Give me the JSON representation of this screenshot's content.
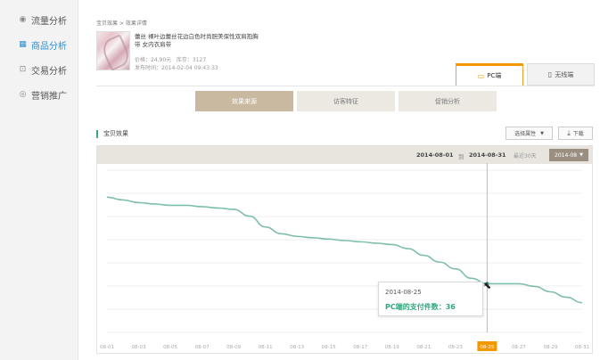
{
  "sidebar": {
    "items": [
      {
        "label": "流量分析",
        "icon": "eye-icon"
      },
      {
        "label": "商品分析",
        "icon": "product-icon",
        "active": true
      },
      {
        "label": "交易分析",
        "icon": "cart-icon"
      },
      {
        "label": "营销推广",
        "icon": "promotion-icon"
      }
    ]
  },
  "breadcrumb": "宝贝效果 > 效果详情",
  "product": {
    "title": "蕾丝 裸叶边蕾丝花边白色时尚胆美保性双肩抱胸带 女内衣肩带",
    "price_label": "价格：24.90元",
    "stock_label": "库存：3127",
    "published_label": "发布时间：2014-02-04 09:43:33"
  },
  "device_tabs": [
    {
      "label": "PC端",
      "active": true
    },
    {
      "label": "无线端",
      "active": false
    }
  ],
  "sub_tabs": [
    {
      "label": "效果来源",
      "active": true
    },
    {
      "label": "访客特征",
      "active": false
    },
    {
      "label": "促销分析",
      "active": false
    }
  ],
  "section_title": "宝贝效果",
  "select_attr_label": "选择属性",
  "download_label": "下载",
  "date_range": {
    "start": "2014-08-01",
    "to": "到",
    "end": "2014-08-31"
  },
  "recent_label": "最近30天",
  "month_label": "2014-08",
  "tooltip": {
    "date": "2014-08-25",
    "text": "PC端的支付件数：36"
  },
  "colors": {
    "accent": "#f39800",
    "line": "#7fbfa9",
    "highlight": "#2fa77a"
  },
  "chart_data": {
    "type": "line",
    "x": [
      "08-01",
      "08-02",
      "08-03",
      "08-04",
      "08-05",
      "08-06",
      "08-07",
      "08-08",
      "08-09",
      "08-10",
      "08-11",
      "08-12",
      "08-13",
      "08-14",
      "08-15",
      "08-16",
      "08-17",
      "08-18",
      "08-19",
      "08-20",
      "08-21",
      "08-22",
      "08-23",
      "08-24",
      "08-25",
      "08-26",
      "08-27",
      "08-28",
      "08-29",
      "08-30",
      "08-31"
    ],
    "tick_labels": [
      "08-01",
      "08-03",
      "08-05",
      "08-07",
      "08-09",
      "08-11",
      "08-13",
      "08-15",
      "08-17",
      "08-19",
      "08-21",
      "08-23",
      "08-25",
      "08-27",
      "08-29",
      "08-31"
    ],
    "highlight_tick": "08-25",
    "series": [
      {
        "values": [
          100,
          98,
          96,
          95,
          94,
          94,
          93,
          92,
          91,
          86,
          78,
          73,
          71,
          70,
          69,
          68,
          67,
          66,
          65,
          62,
          57,
          52,
          47,
          40,
          36,
          36,
          36,
          34,
          30,
          26,
          22
        ]
      }
    ],
    "ylim": [
      0,
      120
    ],
    "grid": true
  }
}
